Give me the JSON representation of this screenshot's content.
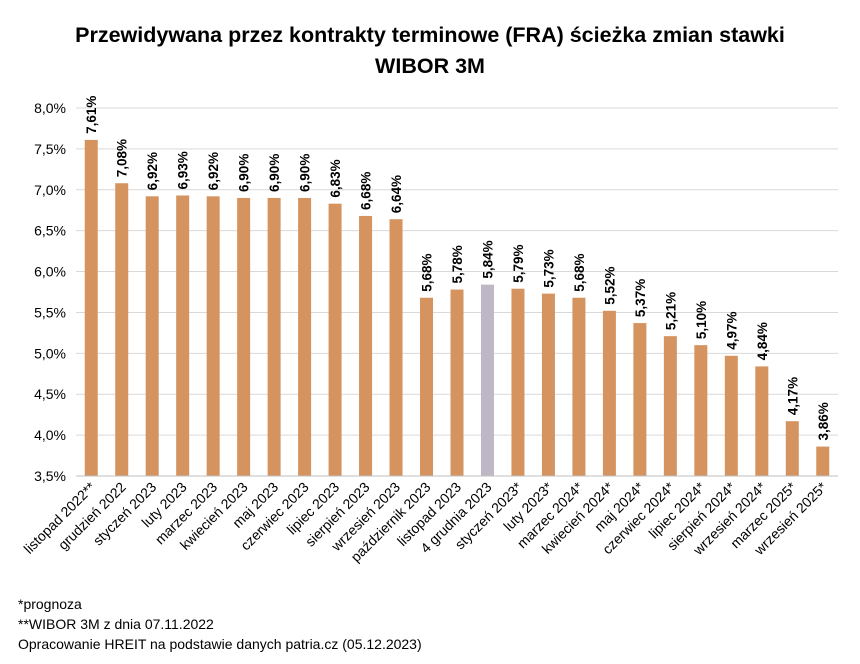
{
  "title_line1": "Przewidywana przez kontrakty terminowe (FRA) ścieżka zmian stawki",
  "title_line2": "WIBOR 3M",
  "footnotes": [
    "*prognoza",
    "**WIBOR 3M z dnia 07.11.2022",
    "Opracowanie HREIT na podstawie danych patria.cz (05.12.2023)"
  ],
  "colors": {
    "bar": "#D4935F",
    "highlight": "#BEB7C6",
    "grid": "#D9D9D9",
    "axis": "#BFBFBF"
  },
  "chart_data": {
    "type": "bar",
    "categories": [
      "listopad 2022**",
      "grudzień 2022",
      "styczeń 2023",
      "luty 2023",
      "marzec 2023",
      "kwiecień 2023",
      "maj 2023",
      "czerwiec 2023",
      "lipiec 2023",
      "sierpień 2023",
      "wrzesień 2023",
      "październik 2023",
      "listopad 2023",
      "4 grudnia 2023",
      "styczeń 2023*",
      "luty 2023*",
      "marzec 2024*",
      "kwiecień 2024*",
      "maj 2024*",
      "czerwiec 2024*",
      "lipiec 2024*",
      "sierpień 2024*",
      "wrzesień 2024*",
      "marzec 2025*",
      "wrzesień 2025*"
    ],
    "values": [
      7.61,
      7.08,
      6.92,
      6.93,
      6.92,
      6.9,
      6.9,
      6.9,
      6.83,
      6.68,
      6.64,
      5.68,
      5.78,
      5.84,
      5.79,
      5.73,
      5.68,
      5.52,
      5.37,
      5.21,
      5.1,
      4.97,
      4.84,
      4.17,
      3.86
    ],
    "data_labels": [
      "7,61%",
      "7,08%",
      "6,92%",
      "6,93%",
      "6,92%",
      "6,90%",
      "6,90%",
      "6,90%",
      "6,83%",
      "6,68%",
      "6,64%",
      "5,68%",
      "5,78%",
      "5,84%",
      "5,79%",
      "5,73%",
      "5,68%",
      "5,52%",
      "5,37%",
      "5,21%",
      "5,10%",
      "4,97%",
      "4,84%",
      "4,17%",
      "3,86%"
    ],
    "highlight_category": "4 grudnia 2023",
    "ylim": [
      3.5,
      8.0
    ],
    "yticks": [
      3.5,
      4.0,
      4.5,
      5.0,
      5.5,
      6.0,
      6.5,
      7.0,
      7.5,
      8.0
    ],
    "ytick_labels": [
      "3,5%",
      "4,0%",
      "4,5%",
      "5,0%",
      "5,5%",
      "6,0%",
      "6,5%",
      "7,0%",
      "7,5%",
      "8,0%"
    ],
    "grid": true,
    "legend": "none"
  }
}
